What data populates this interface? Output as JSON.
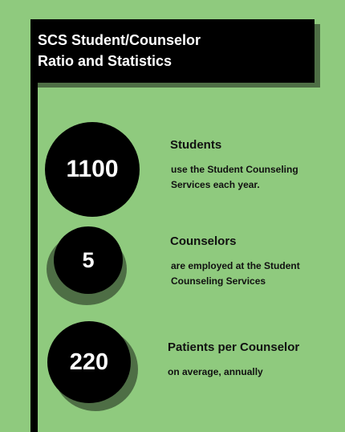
{
  "header": {
    "title_line1": "SCS Student/Counselor",
    "title_line2": "Ratio and Statistics"
  },
  "stats": [
    {
      "value": "1100",
      "heading": "Students",
      "desc_line1": "use the Student  Counseling",
      "desc_line2": "Services each year."
    },
    {
      "value": "5",
      "heading": "Counselors",
      "desc_line1": "are employed at the Student",
      "desc_line2": "Counseling Services"
    },
    {
      "value": "220",
      "heading": "Patients per Counselor",
      "desc_line1": "on average, annually",
      "desc_line2": ""
    }
  ],
  "colors": {
    "background": "#8fca7e",
    "shadow": "#4e6e45",
    "circle": "#000000"
  }
}
